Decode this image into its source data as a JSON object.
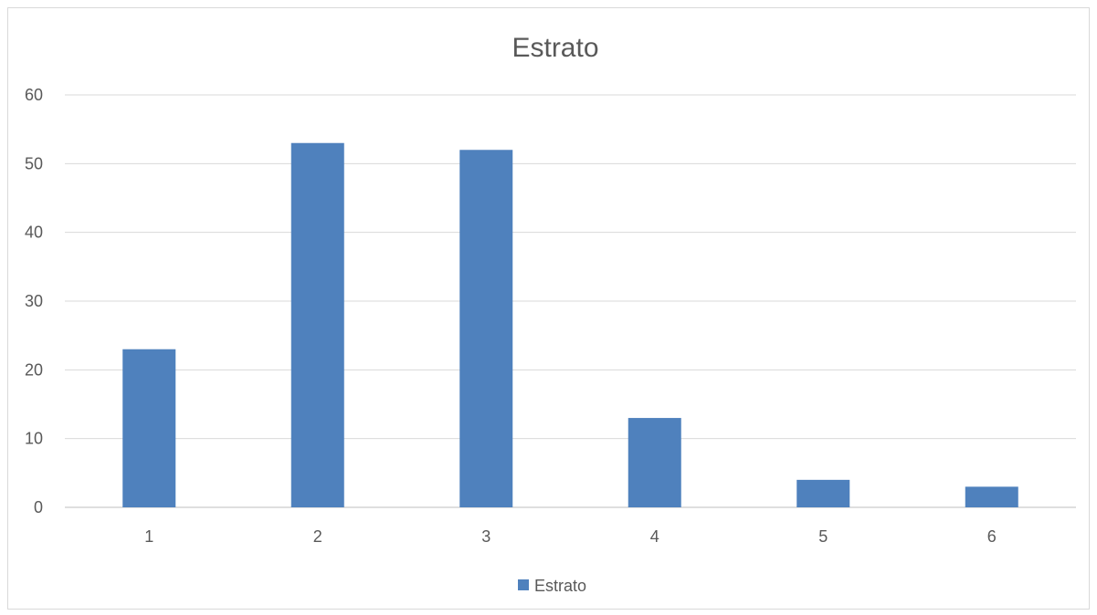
{
  "chart_data": {
    "type": "bar",
    "title": "Estrato",
    "categories": [
      "1",
      "2",
      "3",
      "4",
      "5",
      "6"
    ],
    "series": [
      {
        "name": "Estrato",
        "values": [
          23,
          53,
          52,
          13,
          4,
          3
        ],
        "color": "#4f81bd"
      }
    ],
    "xlabel": "",
    "ylabel": "",
    "ylim": [
      0,
      60
    ],
    "yticks": [
      "0",
      "10",
      "20",
      "30",
      "40",
      "50",
      "60"
    ],
    "grid": true,
    "legend": "bottom",
    "gridColor": "#d9d9d9",
    "axisColor": "#bfbfbf",
    "textColor": "#595959"
  }
}
